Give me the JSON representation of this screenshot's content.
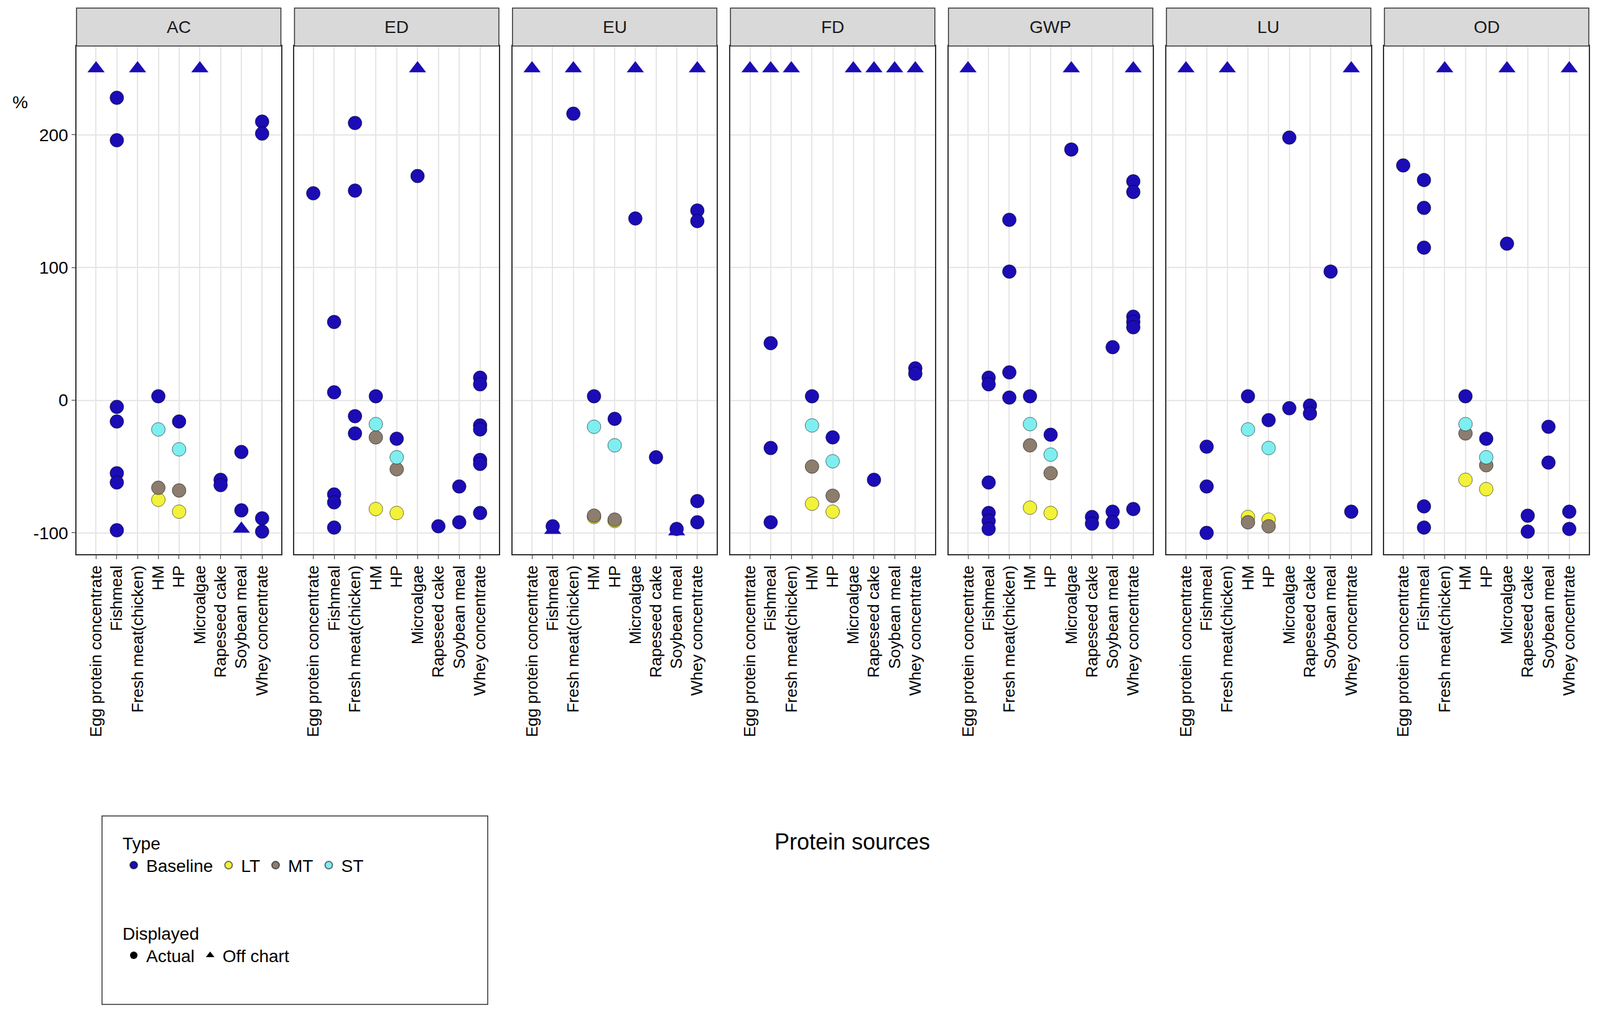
{
  "chart_data": {
    "type": "scatter",
    "x_label": "Protein sources",
    "y_label": "%",
    "categories": [
      "Egg protein concentrate",
      "Fishmeal",
      "Fresh meat(chicken)",
      "HM",
      "HP",
      "Microalgae",
      "Rapeseed cake",
      "Soybean meal",
      "Whey concentrate"
    ],
    "ylim": [
      -116,
      267
    ],
    "yticks": [
      -100,
      0,
      100,
      200
    ],
    "grid": true,
    "type_legend_title": "Type",
    "series": [
      {
        "name": "Baseline",
        "color": "#1b0cb5",
        "marker": "circle"
      },
      {
        "name": "LT",
        "color": "#f2f23a",
        "marker": "circle"
      },
      {
        "name": "MT",
        "color": "#8c7d6e",
        "marker": "circle"
      },
      {
        "name": "ST",
        "color": "#7feef0",
        "marker": "circle"
      }
    ],
    "displayed_legend": {
      "title": "Displayed",
      "entries": [
        {
          "name": "Actual",
          "marker": "circle"
        },
        {
          "name": "Off chart",
          "marker": "triangle-up"
        }
      ]
    },
    "off_chart_style": {
      "series": "Baseline",
      "marker": "triangle-up"
    },
    "panels": [
      {
        "title": "AC",
        "series": [
          {
            "name": "Baseline",
            "x": [
              "Fishmeal",
              "Fishmeal",
              "Fishmeal",
              "Fishmeal",
              "Fishmeal",
              "Fishmeal",
              "Fishmeal",
              "HM",
              "HP",
              "Rapeseed cake",
              "Rapeseed cake",
              "Soybean meal",
              "Soybean meal",
              "Whey concentrate",
              "Whey concentrate",
              "Whey concentrate",
              "Whey concentrate"
            ],
            "values": [
              228,
              196,
              -5,
              -16,
              -55,
              -62,
              -98,
              3,
              -16,
              -60,
              -64,
              -39,
              -83,
              210,
              201,
              -89,
              -99
            ]
          },
          {
            "name": "LT",
            "x": [
              "HM",
              "HP"
            ],
            "values": [
              -75,
              -84
            ]
          },
          {
            "name": "MT",
            "x": [
              "HM",
              "HP"
            ],
            "values": [
              -66,
              -68
            ]
          },
          {
            "name": "ST",
            "x": [
              "HM",
              "HP"
            ],
            "values": [
              -22,
              -37
            ]
          }
        ],
        "off_chart": {
          "x": [
            "Egg protein concentrate",
            "Fresh meat(chicken)",
            "Microalgae",
            "Soybean meal"
          ],
          "values": [
            250,
            250,
            250,
            -97
          ]
        }
      },
      {
        "title": "ED",
        "series": [
          {
            "name": "Baseline",
            "x": [
              "Egg protein concentrate",
              "Fishmeal",
              "Fishmeal",
              "Fishmeal",
              "Fishmeal",
              "Fishmeal",
              "Fresh meat(chicken)",
              "Fresh meat(chicken)",
              "Fresh meat(chicken)",
              "Fresh meat(chicken)",
              "HM",
              "HP",
              "Microalgae",
              "Rapeseed cake",
              "Soybean meal",
              "Soybean meal",
              "Whey concentrate",
              "Whey concentrate",
              "Whey concentrate",
              "Whey concentrate",
              "Whey concentrate",
              "Whey concentrate",
              "Whey concentrate"
            ],
            "values": [
              156,
              59,
              6,
              -71,
              -77,
              -96,
              209,
              158,
              -12,
              -25,
              3,
              -29,
              169,
              -95,
              -65,
              -92,
              17,
              12,
              -19,
              -22,
              -45,
              -48,
              -85
            ]
          },
          {
            "name": "LT",
            "x": [
              "HM",
              "HP"
            ],
            "values": [
              -82,
              -85
            ]
          },
          {
            "name": "MT",
            "x": [
              "HM",
              "HP"
            ],
            "values": [
              -28,
              -52
            ]
          },
          {
            "name": "ST",
            "x": [
              "HM",
              "HP"
            ],
            "values": [
              -18,
              -43
            ]
          }
        ],
        "off_chart": {
          "x": [
            "Microalgae"
          ],
          "values": [
            250
          ]
        }
      },
      {
        "title": "EU",
        "series": [
          {
            "name": "Baseline",
            "x": [
              "Fishmeal",
              "Fresh meat(chicken)",
              "HM",
              "HP",
              "Microalgae",
              "Rapeseed cake",
              "Soybean meal",
              "Whey concentrate",
              "Whey concentrate",
              "Whey concentrate",
              "Whey concentrate"
            ],
            "values": [
              -95,
              216,
              3,
              -14,
              137,
              -43,
              -97,
              143,
              135,
              -76,
              -92
            ]
          },
          {
            "name": "LT",
            "x": [
              "HM",
              "HP"
            ],
            "values": [
              -88,
              -91
            ]
          },
          {
            "name": "MT",
            "x": [
              "HM",
              "HP"
            ],
            "values": [
              -87,
              -90
            ]
          },
          {
            "name": "ST",
            "x": [
              "HM",
              "HP"
            ],
            "values": [
              -20,
              -34
            ]
          }
        ],
        "off_chart": {
          "x": [
            "Egg protein concentrate",
            "Fishmeal",
            "Fresh meat(chicken)",
            "Microalgae",
            "Soybean meal",
            "Whey concentrate"
          ],
          "values": [
            250,
            -98,
            250,
            250,
            -99,
            250
          ]
        }
      },
      {
        "title": "FD",
        "series": [
          {
            "name": "Baseline",
            "x": [
              "Fishmeal",
              "Fishmeal",
              "Fishmeal",
              "HM",
              "HP",
              "Rapeseed cake",
              "Whey concentrate",
              "Whey concentrate"
            ],
            "values": [
              43,
              -36,
              -92,
              3,
              -28,
              -60,
              24,
              20
            ]
          },
          {
            "name": "LT",
            "x": [
              "HM",
              "HP"
            ],
            "values": [
              -78,
              -84
            ]
          },
          {
            "name": "MT",
            "x": [
              "HM",
              "HP"
            ],
            "values": [
              -50,
              -72
            ]
          },
          {
            "name": "ST",
            "x": [
              "HM",
              "HP"
            ],
            "values": [
              -19,
              -46
            ]
          }
        ],
        "off_chart": {
          "x": [
            "Egg protein concentrate",
            "Fishmeal",
            "Fresh meat(chicken)",
            "Microalgae",
            "Rapeseed cake",
            "Soybean meal",
            "Whey concentrate"
          ],
          "values": [
            250,
            250,
            250,
            250,
            250,
            250,
            250
          ]
        }
      },
      {
        "title": "GWP",
        "series": [
          {
            "name": "Baseline",
            "x": [
              "Fishmeal",
              "Fishmeal",
              "Fishmeal",
              "Fishmeal",
              "Fishmeal",
              "Fishmeal",
              "Fresh meat(chicken)",
              "Fresh meat(chicken)",
              "Fresh meat(chicken)",
              "Fresh meat(chicken)",
              "HM",
              "HP",
              "Microalgae",
              "Rapeseed cake",
              "Rapeseed cake",
              "Soybean meal",
              "Soybean meal",
              "Soybean meal",
              "Whey concentrate",
              "Whey concentrate",
              "Whey concentrate",
              "Whey concentrate",
              "Whey concentrate",
              "Whey concentrate"
            ],
            "values": [
              17,
              12,
              -62,
              -85,
              -91,
              -97,
              136,
              97,
              21,
              2,
              3,
              -26,
              189,
              -88,
              -93,
              40,
              -84,
              -92,
              165,
              157,
              63,
              59,
              55,
              -82
            ]
          },
          {
            "name": "LT",
            "x": [
              "HM",
              "HP"
            ],
            "values": [
              -81,
              -85
            ]
          },
          {
            "name": "MT",
            "x": [
              "HM",
              "HP"
            ],
            "values": [
              -34,
              -55
            ]
          },
          {
            "name": "ST",
            "x": [
              "HM",
              "HP"
            ],
            "values": [
              -18,
              -41
            ]
          }
        ],
        "off_chart": {
          "x": [
            "Egg protein concentrate",
            "Microalgae",
            "Whey concentrate"
          ],
          "values": [
            250,
            250,
            250
          ]
        }
      },
      {
        "title": "LU",
        "series": [
          {
            "name": "Baseline",
            "x": [
              "Fishmeal",
              "Fishmeal",
              "Fishmeal",
              "HM",
              "HP",
              "Microalgae",
              "Microalgae",
              "Rapeseed cake",
              "Rapeseed cake",
              "Soybean meal",
              "Whey concentrate"
            ],
            "values": [
              -35,
              -65,
              -100,
              3,
              -15,
              198,
              -6,
              -4,
              -10,
              97,
              -84
            ]
          },
          {
            "name": "LT",
            "x": [
              "HM",
              "HP"
            ],
            "values": [
              -88,
              -90
            ]
          },
          {
            "name": "MT",
            "x": [
              "HM",
              "HP"
            ],
            "values": [
              -92,
              -95
            ]
          },
          {
            "name": "ST",
            "x": [
              "HM",
              "HP"
            ],
            "values": [
              -22,
              -36
            ]
          }
        ],
        "off_chart": {
          "x": [
            "Egg protein concentrate",
            "Fresh meat(chicken)",
            "Whey concentrate"
          ],
          "values": [
            250,
            250,
            250
          ]
        }
      },
      {
        "title": "OD",
        "series": [
          {
            "name": "Baseline",
            "x": [
              "Egg protein concentrate",
              "Fishmeal",
              "Fishmeal",
              "Fishmeal",
              "Fishmeal",
              "Fishmeal",
              "HM",
              "HP",
              "Microalgae",
              "Rapeseed cake",
              "Rapeseed cake",
              "Soybean meal",
              "Soybean meal",
              "Whey concentrate",
              "Whey concentrate"
            ],
            "values": [
              177,
              166,
              145,
              115,
              -80,
              -96,
              3,
              -29,
              118,
              -87,
              -99,
              -20,
              -47,
              -84,
              -97
            ]
          },
          {
            "name": "LT",
            "x": [
              "HM",
              "HP"
            ],
            "values": [
              -60,
              -67
            ]
          },
          {
            "name": "MT",
            "x": [
              "HM",
              "HP"
            ],
            "values": [
              -25,
              -49
            ]
          },
          {
            "name": "ST",
            "x": [
              "HM",
              "HP"
            ],
            "values": [
              -18,
              -43
            ]
          }
        ],
        "off_chart": {
          "x": [
            "Fresh meat(chicken)",
            "Microalgae",
            "Whey concentrate"
          ],
          "values": [
            250,
            250,
            250
          ]
        }
      }
    ]
  }
}
